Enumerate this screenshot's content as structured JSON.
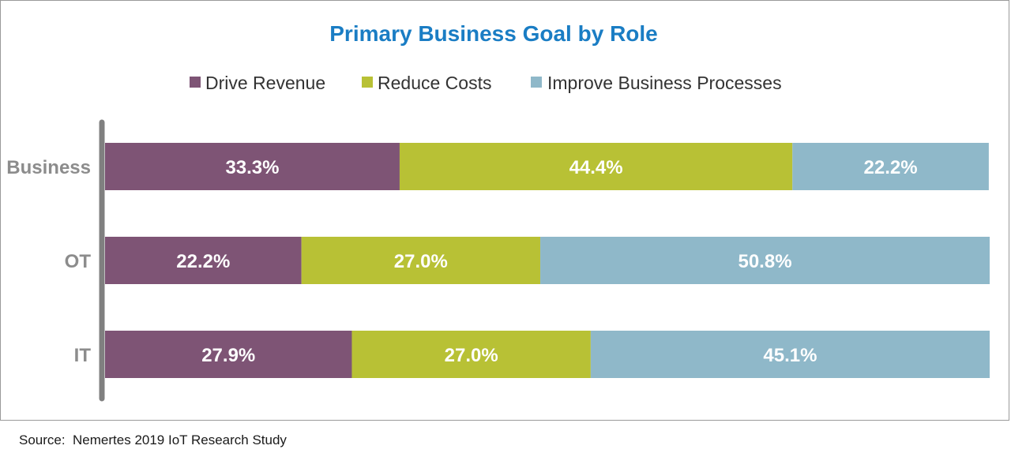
{
  "source_label": "Source:  Nemertes 2019 IoT Research Study",
  "chart_data": {
    "type": "bar",
    "orientation": "horizontal",
    "stacked": true,
    "percent_stacked": true,
    "title": "Primary Business Goal by Role",
    "categories": [
      "Business",
      "OT",
      "IT"
    ],
    "series": [
      {
        "name": "Drive Revenue",
        "values": [
          33.3,
          22.2,
          27.9
        ],
        "labels": [
          "33.3%",
          "22.2%",
          "27.9%"
        ],
        "color": "#7e5475"
      },
      {
        "name": "Reduce Costs",
        "values": [
          44.4,
          27.0,
          27.0
        ],
        "labels": [
          "44.4%",
          "27.0%",
          "27.0%"
        ],
        "color": "#b8c135"
      },
      {
        "name": "Improve Business Processes",
        "values": [
          22.2,
          50.8,
          45.1
        ],
        "labels": [
          "22.2%",
          "50.8%",
          "45.1%"
        ],
        "color": "#8fb8c9"
      }
    ],
    "xlim": [
      0,
      100
    ],
    "legend_position": "top-center",
    "grid": false,
    "title_color": "#1a7dc4",
    "category_label_color": "#8c8c8c",
    "axis_color": "#808080"
  }
}
